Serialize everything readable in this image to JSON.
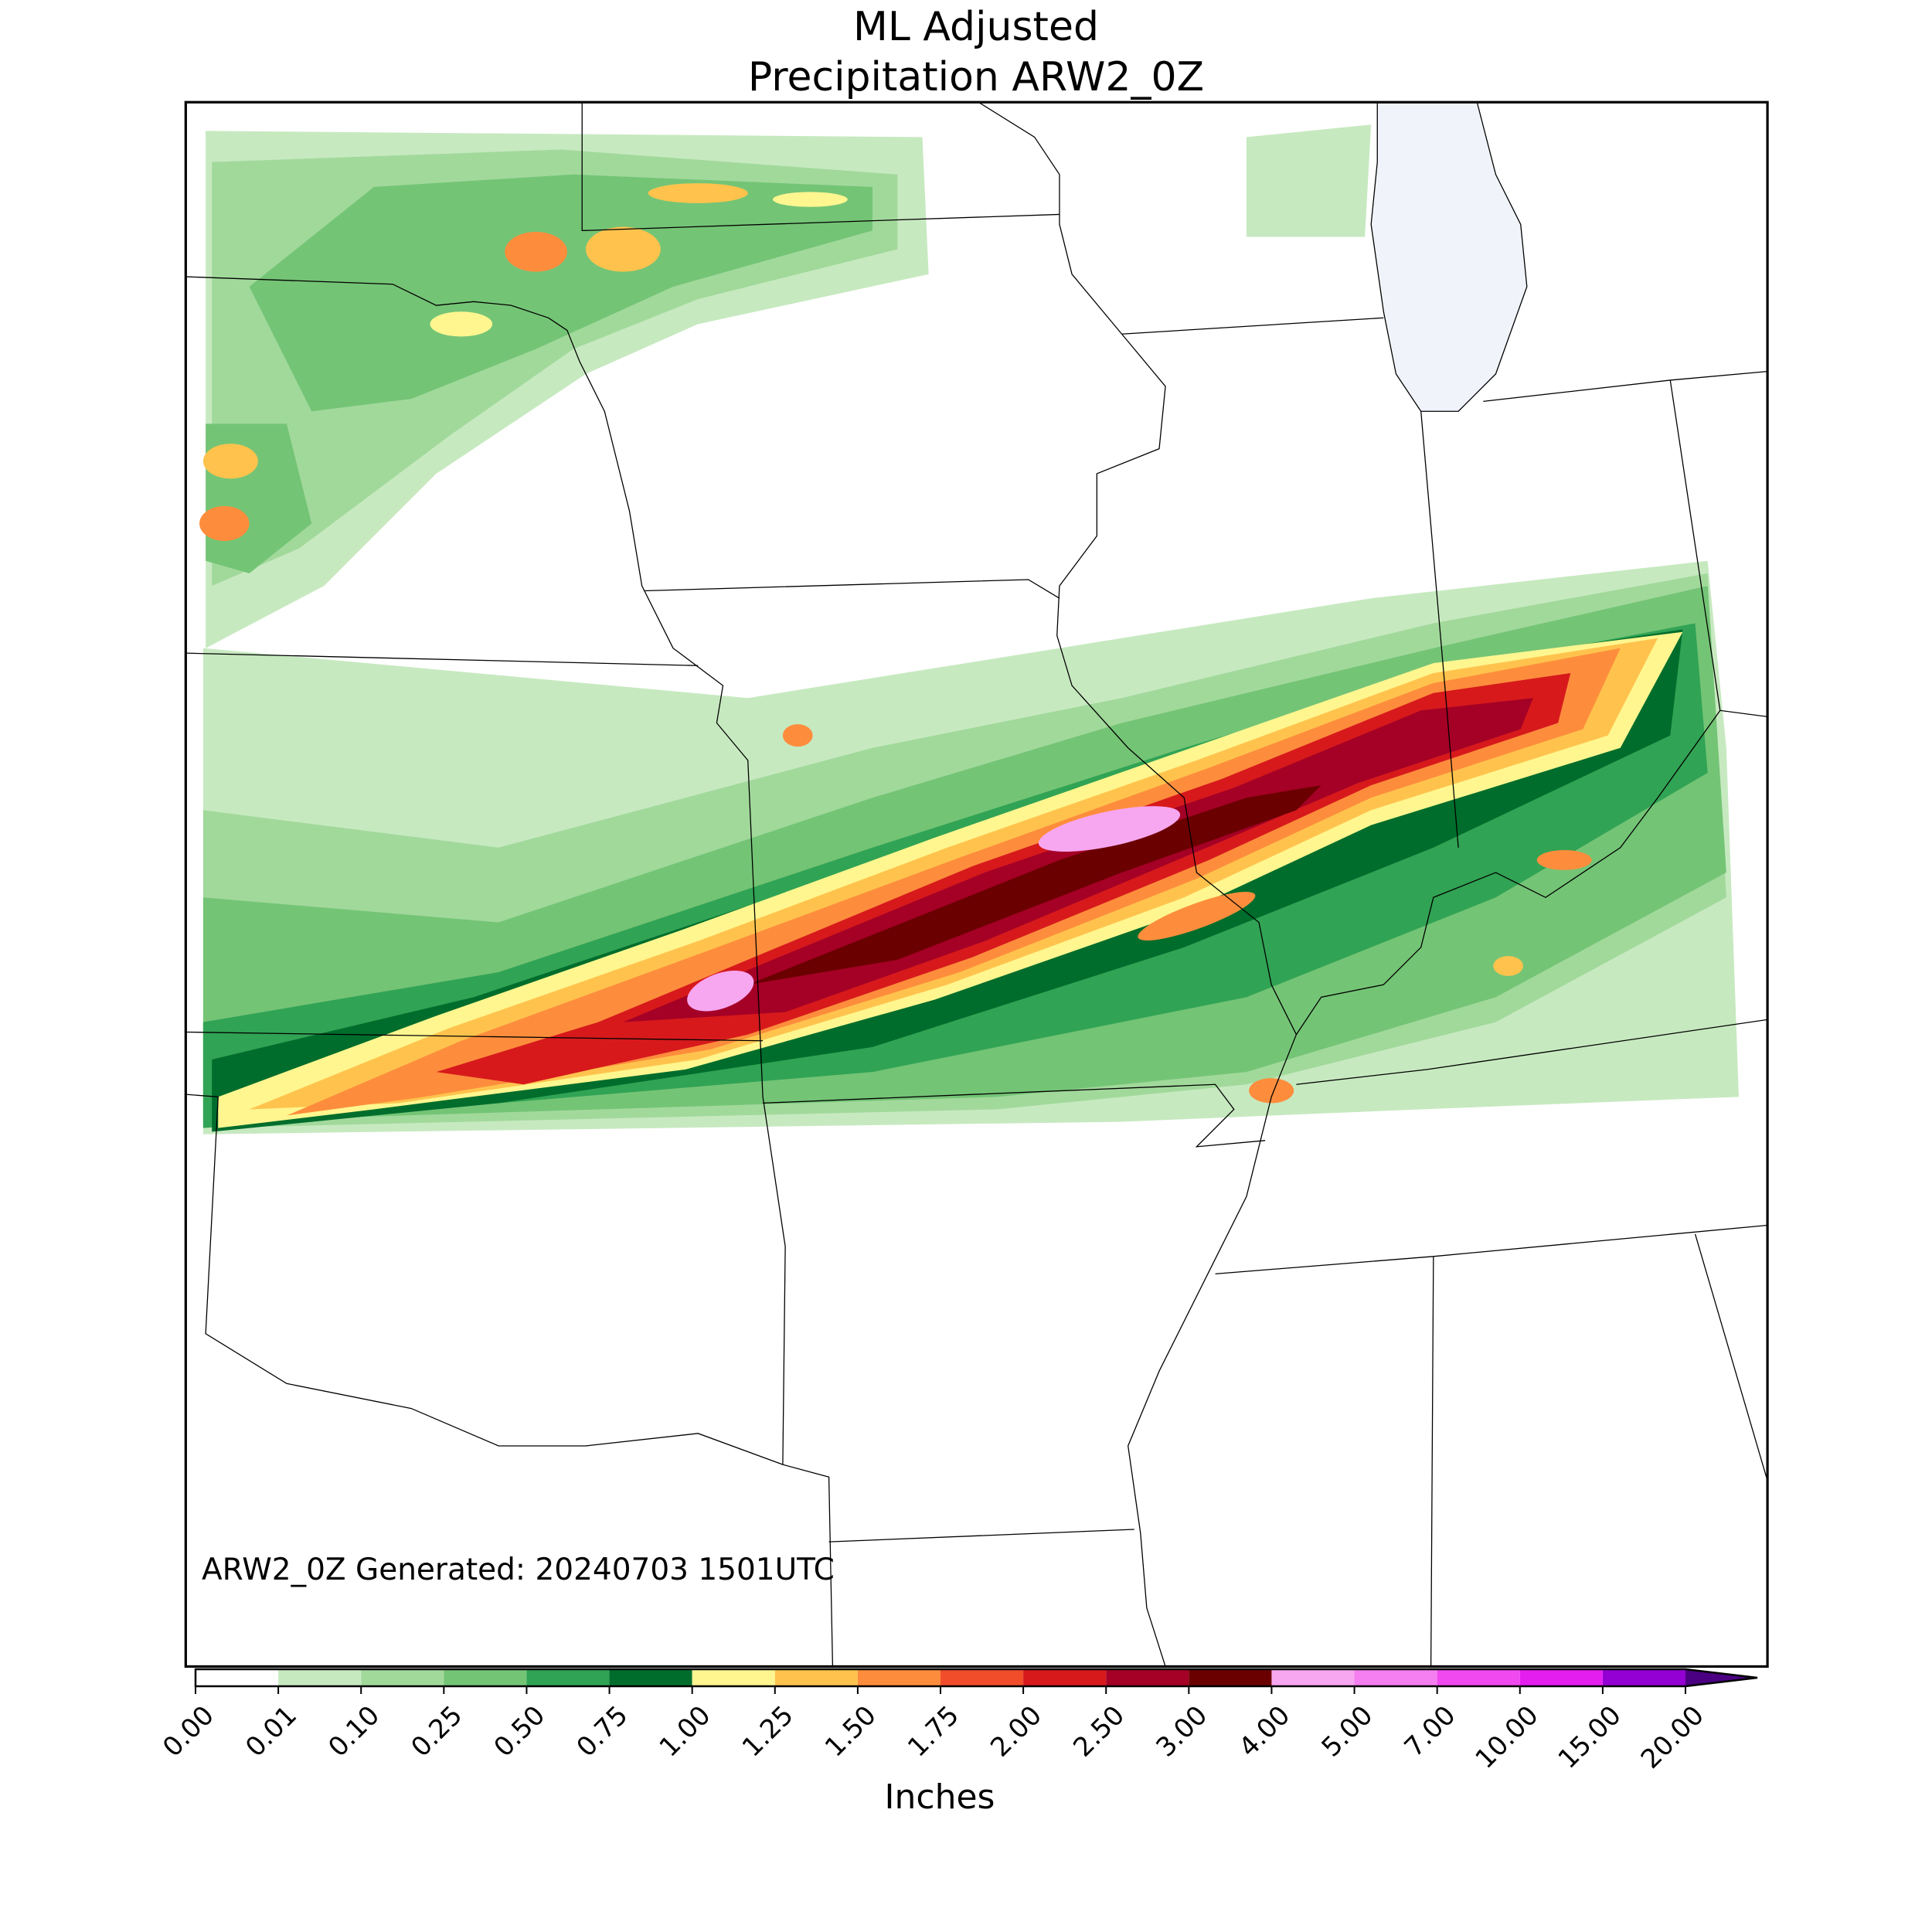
{
  "title_lines": [
    "ML Adjusted",
    "Precipitation ARW2_0Z"
  ],
  "annotation": "ARW2_0Z Generated: 20240703 1501UTC",
  "colorbar": {
    "label": "Inches",
    "ticks": [
      {
        "value": 0,
        "label": "0.00"
      },
      {
        "value": 0.01,
        "label": "0.01"
      },
      {
        "value": 0.1,
        "label": "0.10"
      },
      {
        "value": 0.25,
        "label": "0.25"
      },
      {
        "value": 0.5,
        "label": "0.50"
      },
      {
        "value": 0.75,
        "label": "0.75"
      },
      {
        "value": 1,
        "label": "1.00"
      },
      {
        "value": 1.25,
        "label": "1.25"
      },
      {
        "value": 1.5,
        "label": "1.50"
      },
      {
        "value": 1.75,
        "label": "1.75"
      },
      {
        "value": 2,
        "label": "2.00"
      },
      {
        "value": 2.5,
        "label": "2.50"
      },
      {
        "value": 3,
        "label": "3.00"
      },
      {
        "value": 4,
        "label": "4.00"
      },
      {
        "value": 5,
        "label": "5.00"
      },
      {
        "value": 7,
        "label": "7.00"
      },
      {
        "value": 10,
        "label": "10.00"
      },
      {
        "value": 15,
        "label": "15.00"
      },
      {
        "value": 20,
        "label": "20.00"
      }
    ],
    "colors": [
      "#ffffff",
      "#c7e9c0",
      "#a1d99b",
      "#74c476",
      "#31a354",
      "#006d2c",
      "#fff68f",
      "#ffc34d",
      "#fd8d3c",
      "#f24d2a",
      "#d7191c",
      "#a50026",
      "#6b0000",
      "#f7a6f0",
      "#f57ef0",
      "#f049f0",
      "#e51ef0",
      "#9400d3"
    ],
    "over_color": "#4b0082"
  }
}
